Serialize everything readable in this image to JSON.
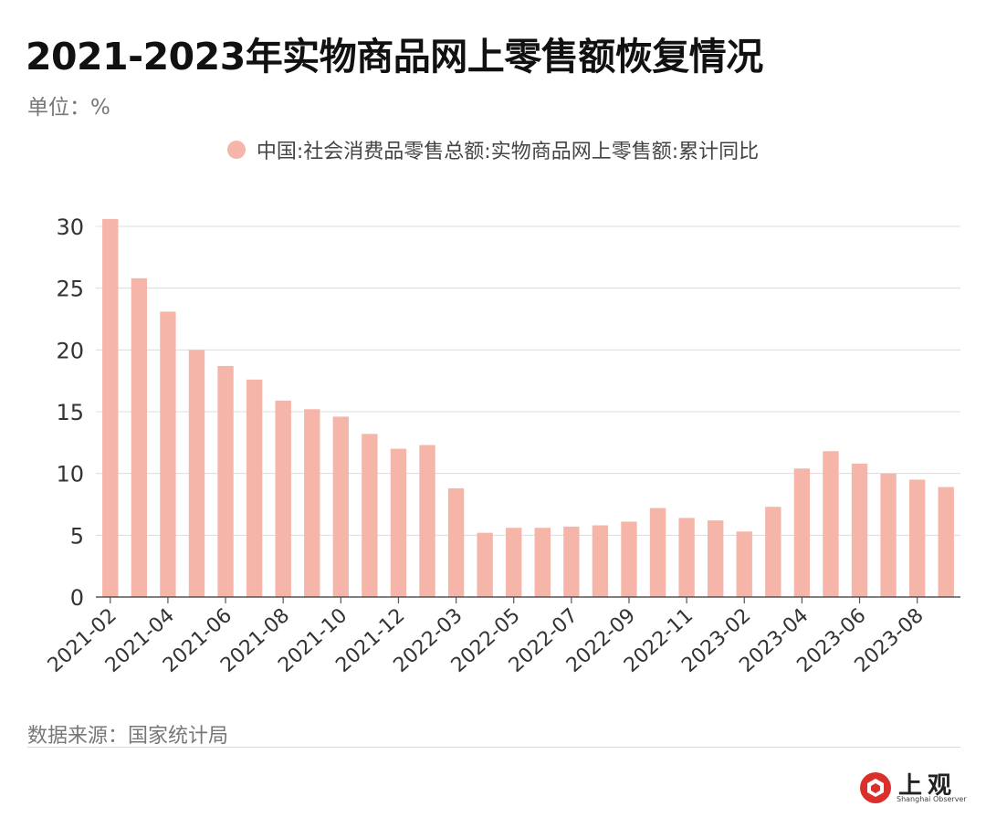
{
  "title": "2021-2023年实物商品网上零售额恢复情况",
  "unit": "单位：%",
  "source": "数据来源：国家统计局",
  "logo": {
    "cn": "上观",
    "en": "Shanghai Observer"
  },
  "colors": {
    "bar": "#f5b5a9",
    "grid": "#dcdcdc",
    "axis": "#555555",
    "logo_red": "#d9302c"
  },
  "chart_data": {
    "type": "bar",
    "legend": "中国:社会消费品零售总额:实物商品网上零售额:累计同比",
    "categories": [
      "2021-02",
      "2021-03",
      "2021-04",
      "2021-05",
      "2021-06",
      "2021-07",
      "2021-08",
      "2021-09",
      "2021-10",
      "2021-11",
      "2021-12",
      "2022-02",
      "2022-03",
      "2022-04",
      "2022-05",
      "2022-06",
      "2022-07",
      "2022-08",
      "2022-09",
      "2022-10",
      "2022-11",
      "2022-12",
      "2023-02",
      "2023-03",
      "2023-04",
      "2023-05",
      "2023-06",
      "2023-07",
      "2023-08",
      "2023-09"
    ],
    "tick_labels": [
      "2021-02",
      "2021-04",
      "2021-06",
      "2021-08",
      "2021-10",
      "2021-12",
      "2022-03",
      "2022-05",
      "2022-07",
      "2022-09",
      "2022-11",
      "2023-02",
      "2023-04",
      "2023-06",
      "2023-08"
    ],
    "values": [
      30.6,
      25.8,
      23.1,
      20.0,
      18.7,
      17.6,
      15.9,
      15.2,
      14.6,
      13.2,
      12.0,
      12.3,
      8.8,
      5.2,
      5.6,
      5.6,
      5.7,
      5.8,
      6.1,
      7.2,
      6.4,
      6.2,
      5.3,
      7.3,
      10.4,
      11.8,
      10.8,
      10.0,
      9.5,
      8.9
    ],
    "ylim": [
      0,
      30
    ],
    "yticks": [
      0,
      5,
      10,
      15,
      20,
      25,
      30
    ],
    "grid": true
  }
}
